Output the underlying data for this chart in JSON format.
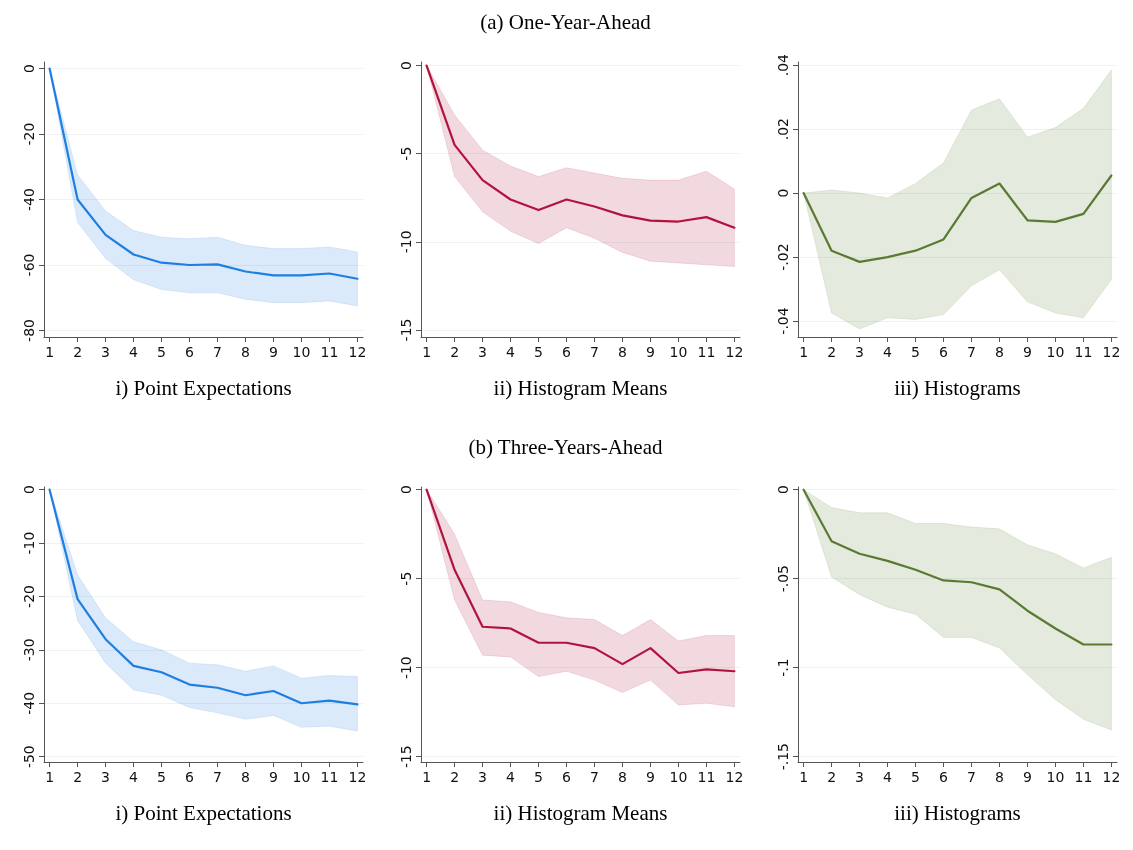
{
  "chart_data": [
    {
      "type": "line",
      "xlabel": "i) Point Expectations",
      "x": [
        1,
        2,
        3,
        4,
        5,
        6,
        7,
        8,
        9,
        10,
        11,
        12
      ],
      "xlim": [
        0.8,
        12.2
      ],
      "xticks": [
        1,
        2,
        3,
        4,
        5,
        6,
        7,
        8,
        9,
        10,
        11,
        12
      ],
      "ylim": [
        -82,
        2
      ],
      "yticks": [
        0,
        -20,
        -40,
        -60,
        -80
      ],
      "grid": "y",
      "marker": "none",
      "line_style": "solid",
      "series": [
        {
          "color": "#1f7fe0",
          "values": [
            0,
            -40,
            -50.8,
            -56.8,
            -59.3,
            -60,
            -59.8,
            -62,
            -63.2,
            -63.2,
            -62.6,
            -64.2
          ],
          "upper": [
            0,
            -32.5,
            -43.5,
            -49.5,
            -51.5,
            -52,
            -51.5,
            -54,
            -55,
            -55,
            -54.5,
            -56
          ],
          "lower": [
            0,
            -47,
            -58,
            -64.5,
            -67.5,
            -68.5,
            -68.5,
            -70.5,
            -71.5,
            -71.5,
            -71,
            -72.5
          ]
        }
      ]
    },
    {
      "type": "line",
      "title": "(a) One-Year-Ahead",
      "xlabel": "ii) Histogram Means",
      "x": [
        1,
        2,
        3,
        4,
        5,
        6,
        7,
        8,
        9,
        10,
        11,
        12
      ],
      "xlim": [
        0.8,
        12.2
      ],
      "xticks": [
        1,
        2,
        3,
        4,
        5,
        6,
        7,
        8,
        9,
        10,
        11,
        12
      ],
      "ylim": [
        -15.4,
        0.2
      ],
      "yticks": [
        0,
        -5,
        -10,
        -15
      ],
      "grid": "y",
      "marker": "none",
      "line_style": "solid",
      "series": [
        {
          "color": "#b0143e",
          "values": [
            0,
            -4.5,
            -6.5,
            -7.6,
            -8.2,
            -7.6,
            -8.0,
            -8.5,
            -8.8,
            -8.85,
            -8.6,
            -9.2
          ],
          "upper": [
            0,
            -2.8,
            -4.8,
            -5.7,
            -6.3,
            -5.8,
            -6.1,
            -6.4,
            -6.5,
            -6.5,
            -6.0,
            -7.0
          ],
          "lower": [
            0,
            -6.3,
            -8.3,
            -9.4,
            -10.1,
            -9.2,
            -9.8,
            -10.6,
            -11.1,
            -11.2,
            -11.3,
            -11.4
          ]
        }
      ]
    },
    {
      "type": "line",
      "xlabel": "iii) Histograms",
      "x": [
        1,
        2,
        3,
        4,
        5,
        6,
        7,
        8,
        9,
        10,
        11,
        12
      ],
      "xlim": [
        0.8,
        12.2
      ],
      "xticks": [
        1,
        2,
        3,
        4,
        5,
        6,
        7,
        8,
        9,
        10,
        11,
        12
      ],
      "ylim": [
        -0.045,
        0.041
      ],
      "yticks": [
        {
          "value": 0.04,
          "label": ".04"
        },
        {
          "value": 0.02,
          "label": ".02"
        },
        0,
        {
          "value": -0.02,
          "label": "-.02"
        },
        {
          "value": -0.04,
          "label": "-.04"
        }
      ],
      "grid": "y",
      "marker": "none",
      "line_style": "solid",
      "series": [
        {
          "color": "#5a7a32",
          "values": [
            0,
            -0.018,
            -0.0215,
            -0.02,
            -0.018,
            -0.0145,
            -0.0015,
            0.003,
            -0.0085,
            -0.009,
            -0.0065,
            0.0055
          ],
          "upper": [
            0,
            0.001,
            0,
            -0.0015,
            0.003,
            0.0095,
            0.026,
            0.0295,
            0.0175,
            0.0205,
            0.0265,
            0.0385
          ],
          "lower": [
            0,
            -0.0375,
            -0.0425,
            -0.039,
            -0.0395,
            -0.038,
            -0.029,
            -0.024,
            -0.034,
            -0.0375,
            -0.039,
            -0.027
          ]
        }
      ]
    },
    {
      "type": "line",
      "xlabel": "i) Point Expectations",
      "x": [
        1,
        2,
        3,
        4,
        5,
        6,
        7,
        8,
        9,
        10,
        11,
        12
      ],
      "xlim": [
        0.8,
        12.2
      ],
      "xticks": [
        1,
        2,
        3,
        4,
        5,
        6,
        7,
        8,
        9,
        10,
        11,
        12
      ],
      "ylim": [
        -51,
        0.5
      ],
      "yticks": [
        0,
        -10,
        -20,
        -30,
        -40,
        -50
      ],
      "grid": "y",
      "marker": "none",
      "line_style": "solid",
      "series": [
        {
          "color": "#1f7fe0",
          "values": [
            0,
            -20.5,
            -28,
            -33,
            -34.2,
            -36.5,
            -37.1,
            -38.5,
            -37.7,
            -40,
            -39.5,
            -40.2
          ],
          "upper": [
            0,
            -16,
            -24,
            -28.5,
            -30,
            -32.5,
            -32.8,
            -34,
            -33,
            -35.3,
            -34.8,
            -35
          ],
          "lower": [
            0,
            -24.5,
            -32.5,
            -37.5,
            -38.5,
            -40.8,
            -41.8,
            -43,
            -42.3,
            -44.5,
            -44.3,
            -45.2
          ]
        }
      ]
    },
    {
      "type": "line",
      "title": "(b) Three-Years-Ahead",
      "xlabel": "ii) Histogram Means",
      "x": [
        1,
        2,
        3,
        4,
        5,
        6,
        7,
        8,
        9,
        10,
        11,
        12
      ],
      "xlim": [
        0.8,
        12.2
      ],
      "xticks": [
        1,
        2,
        3,
        4,
        5,
        6,
        7,
        8,
        9,
        10,
        11,
        12
      ],
      "ylim": [
        -15.3,
        0.15
      ],
      "yticks": [
        0,
        -5,
        -10,
        -15
      ],
      "grid": "y",
      "marker": "none",
      "line_style": "solid",
      "series": [
        {
          "color": "#b0143e",
          "values": [
            0,
            -4.5,
            -7.7,
            -7.8,
            -8.6,
            -8.6,
            -8.9,
            -9.8,
            -8.9,
            -10.3,
            -10.1,
            -10.2
          ],
          "upper": [
            0,
            -2.5,
            -6.2,
            -6.3,
            -6.9,
            -7.2,
            -7.3,
            -8.2,
            -7.3,
            -8.5,
            -8.2,
            -8.2
          ],
          "lower": [
            0,
            -6.2,
            -9.3,
            -9.4,
            -10.5,
            -10.2,
            -10.7,
            -11.4,
            -10.7,
            -12.1,
            -12,
            -12.2
          ]
        }
      ]
    },
    {
      "type": "line",
      "xlabel": "iii) Histograms",
      "x": [
        1,
        2,
        3,
        4,
        5,
        6,
        7,
        8,
        9,
        10,
        11,
        12
      ],
      "xlim": [
        0.8,
        12.2
      ],
      "xticks": [
        1,
        2,
        3,
        4,
        5,
        6,
        7,
        8,
        9,
        10,
        11,
        12
      ],
      "ylim": [
        -0.153,
        0.0015
      ],
      "yticks": [
        0,
        {
          "value": -0.05,
          "label": "-.05"
        },
        {
          "value": -0.1,
          "label": "-.1"
        },
        {
          "value": -0.15,
          "label": "-.15"
        }
      ],
      "grid": "y",
      "marker": "none",
      "line_style": "solid",
      "series": [
        {
          "color": "#5a7a32",
          "values": [
            0,
            -0.029,
            -0.036,
            -0.04,
            -0.045,
            -0.051,
            -0.052,
            -0.056,
            -0.068,
            -0.078,
            -0.087,
            -0.087
          ],
          "upper": [
            0,
            -0.01,
            -0.013,
            -0.013,
            -0.019,
            -0.019,
            -0.021,
            -0.022,
            -0.031,
            -0.036,
            -0.044,
            -0.038
          ],
          "lower": [
            0,
            -0.049,
            -0.059,
            -0.066,
            -0.07,
            -0.083,
            -0.083,
            -0.089,
            -0.104,
            -0.118,
            -0.129,
            -0.135
          ]
        }
      ]
    }
  ]
}
